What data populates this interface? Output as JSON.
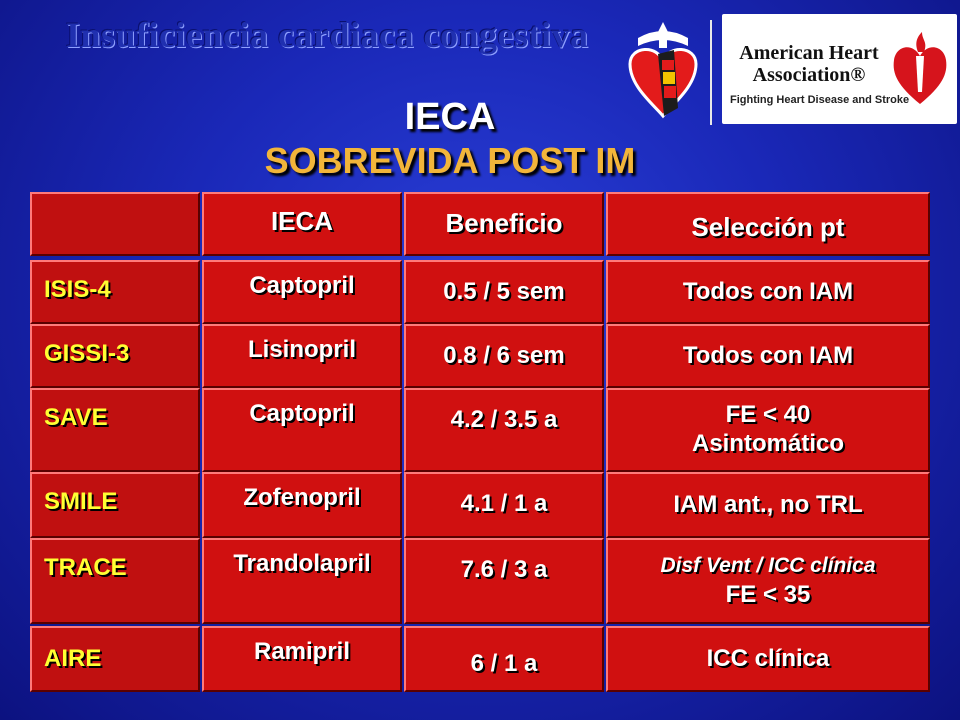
{
  "header": {
    "topic": "Insuficiencia cardiaca congestiva",
    "title": "IECA",
    "subtitle": "SOBREVIDA POST IM"
  },
  "logos": {
    "aha": {
      "name_line1": "American Heart",
      "name_line2": "Association",
      "tagline": "Fighting Heart Disease and Stroke"
    }
  },
  "table": {
    "columns": [
      "",
      "IECA",
      "Beneficio",
      "Selección pt"
    ],
    "rows": [
      {
        "trial": "ISIS-4",
        "drug": "Captopril",
        "benefit": "0.5 / 5 sem",
        "selection": [
          "Todos con IAM"
        ]
      },
      {
        "trial": "GISSI-3",
        "drug": "Lisinopril",
        "benefit": "0.8 / 6 sem",
        "selection": [
          "Todos con IAM"
        ]
      },
      {
        "trial": "SAVE",
        "drug": "Captopril",
        "benefit": "4.2 / 3.5 a",
        "selection": [
          "FE < 40",
          "Asintomático"
        ]
      },
      {
        "trial": "SMILE",
        "drug": "Zofenopril",
        "benefit": "4.1 / 1 a",
        "selection": [
          "IAM ant., no TRL"
        ]
      },
      {
        "trial": "TRACE",
        "drug": "Trandolapril",
        "benefit": "7.6 / 3 a",
        "selection": [
          "Disf Vent / ICC clínica",
          "FE < 35"
        ]
      },
      {
        "trial": "AIRE",
        "drug": "Ramipril",
        "benefit": "6 / 1 a",
        "selection": [
          "ICC clínica"
        ]
      }
    ]
  },
  "colors": {
    "background": "#1a28b8",
    "cell": "#d01010",
    "trial_text": "#ffff33",
    "subtitle": "#f2b53a"
  }
}
